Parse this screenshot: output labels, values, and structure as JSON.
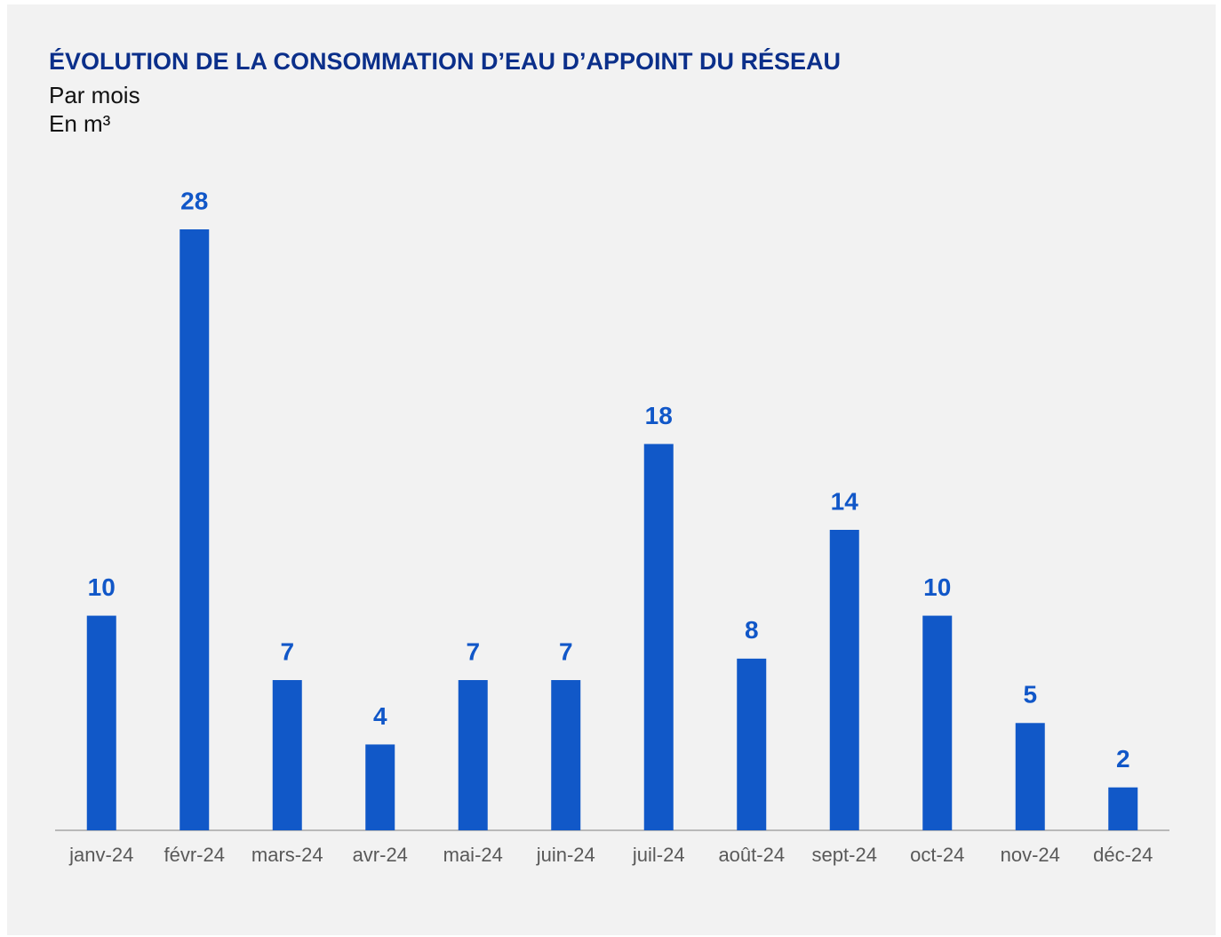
{
  "chart_data": {
    "type": "bar",
    "title": "ÉVOLUTION DE LA CONSOMMATION D’EAU D’APPOINT DU RÉSEAU",
    "subtitle": [
      "Par mois",
      "En m³"
    ],
    "categories": [
      "janv-24",
      "févr-24",
      "mars-24",
      "avr-24",
      "mai-24",
      "juin-24",
      "juil-24",
      "août-24",
      "sept-24",
      "oct-24",
      "nov-24",
      "déc-24"
    ],
    "values": [
      10,
      28,
      7,
      4,
      7,
      7,
      18,
      8,
      14,
      10,
      5,
      2
    ],
    "color": "#1158c8"
  }
}
